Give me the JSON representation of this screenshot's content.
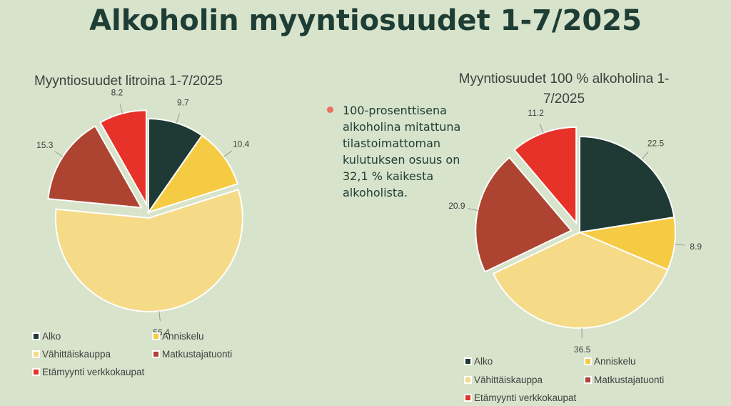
{
  "title": "Alkoholin myyntiosuudet 1-7/2025",
  "note": "100-prosenttisena alkoholina mitattuna tilastoimattoman kulutuksen osuus on 32,1 % kaikesta alkoholista.",
  "chart_data": [
    {
      "type": "pie",
      "title": "Myyntiosuudet litroina 1-7/2025",
      "categories": [
        "Alko",
        "Anniskelu",
        "Vähittäiskauppa",
        "Matkustajatuonti",
        "Etämyynti verkkokaupat"
      ],
      "values": [
        9.7,
        10.4,
        56.4,
        15.3,
        8.2
      ],
      "colors": [
        "#1f3a34",
        "#f6cb44",
        "#f5da88",
        "#ad4431",
        "#e7322a"
      ],
      "legend": "bottom"
    },
    {
      "type": "pie",
      "title": "Myyntiosuudet 100 % alkoholina 1-7/2025",
      "categories": [
        "Alko",
        "Anniskelu",
        "Vähittäiskauppa",
        "Matkustajatuonti",
        "Etämyynti verkkokaupat"
      ],
      "values": [
        22.5,
        8.9,
        36.5,
        20.9,
        11.2
      ],
      "colors": [
        "#1f3a34",
        "#f6cb44",
        "#f5da88",
        "#ad4431",
        "#e7322a"
      ],
      "legend": "bottom"
    }
  ]
}
